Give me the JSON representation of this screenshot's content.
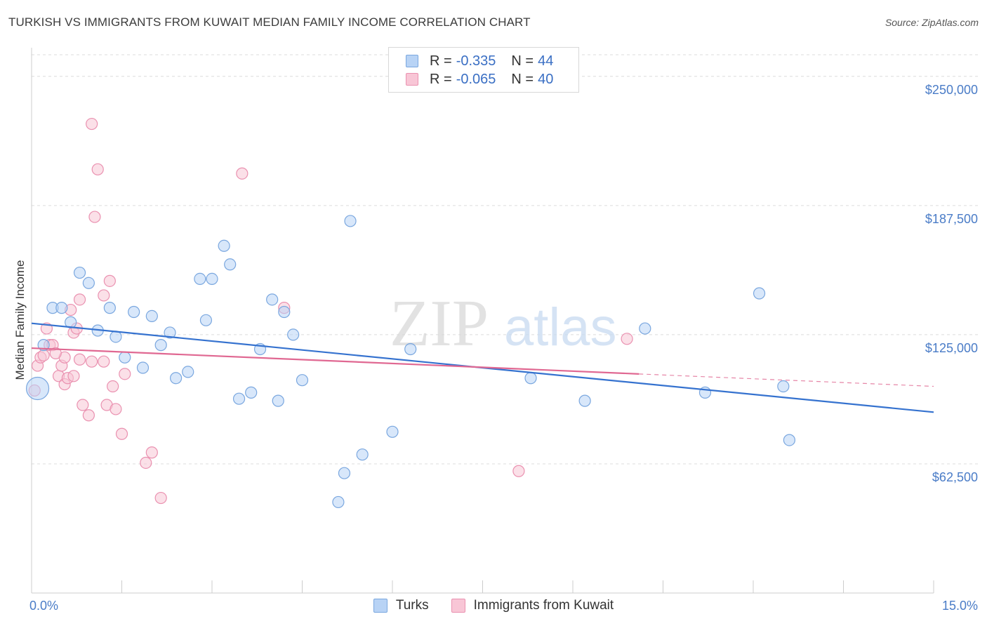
{
  "header": {
    "title": "TURKISH VS IMMIGRANTS FROM KUWAIT MEDIAN FAMILY INCOME CORRELATION CHART",
    "source": "Source: ZipAtlas.com"
  },
  "watermark": {
    "zip": "ZIP",
    "atlas": "atlas"
  },
  "legend": {
    "rows": [
      {
        "r_label": "R =",
        "r_value": "-0.335",
        "n_label": "N =",
        "n_value": "44"
      },
      {
        "r_label": "R =",
        "r_value": "-0.065",
        "n_label": "N =",
        "n_value": "40"
      }
    ]
  },
  "colors": {
    "turks_fill": "#b8d3f5",
    "turks_stroke": "#7aa7df",
    "turks_line": "#3572cf",
    "kuwait_fill": "#f8c6d6",
    "kuwait_stroke": "#ea91b0",
    "kuwait_line": "#e06892",
    "grid": "#dcdcdc",
    "tick_label": "#4a7cc7"
  },
  "chart_data": {
    "type": "scatter",
    "title": "TURKISH VS IMMIGRANTS FROM KUWAIT MEDIAN FAMILY INCOME CORRELATION CHART",
    "xlabel": "",
    "ylabel": "Median Family Income",
    "xlim": [
      0,
      15
    ],
    "ylim": [
      0,
      262500
    ],
    "x_tick_labels": [
      "0.0%",
      "15.0%"
    ],
    "y_ticks": [
      62500,
      125000,
      187500,
      250000
    ],
    "y_tick_labels": [
      "$62,500",
      "$125,000",
      "$187,500",
      "$250,000"
    ],
    "legend_position": "top-center",
    "series": [
      {
        "name": "Turks",
        "trend": {
          "x": [
            0,
            15
          ],
          "y": [
            130500,
            87500
          ]
        },
        "points": [
          [
            0.1,
            99000
          ],
          [
            0.2,
            120000
          ],
          [
            0.35,
            138000
          ],
          [
            0.5,
            138000
          ],
          [
            0.65,
            131000
          ],
          [
            0.8,
            155000
          ],
          [
            0.95,
            150000
          ],
          [
            1.1,
            127000
          ],
          [
            1.3,
            138000
          ],
          [
            1.4,
            124000
          ],
          [
            1.55,
            114000
          ],
          [
            1.7,
            136000
          ],
          [
            1.85,
            109000
          ],
          [
            2.0,
            134000
          ],
          [
            2.15,
            120000
          ],
          [
            2.3,
            126000
          ],
          [
            2.4,
            104000
          ],
          [
            2.6,
            107000
          ],
          [
            2.8,
            152000
          ],
          [
            2.9,
            132000
          ],
          [
            3.0,
            152000
          ],
          [
            3.2,
            168000
          ],
          [
            3.3,
            159000
          ],
          [
            3.45,
            94000
          ],
          [
            3.65,
            97000
          ],
          [
            3.8,
            118000
          ],
          [
            4.0,
            142000
          ],
          [
            4.1,
            93000
          ],
          [
            4.2,
            136000
          ],
          [
            4.35,
            125000
          ],
          [
            4.5,
            103000
          ],
          [
            5.1,
            44000
          ],
          [
            5.2,
            58000
          ],
          [
            5.3,
            180000
          ],
          [
            5.5,
            67000
          ],
          [
            6.0,
            78000
          ],
          [
            6.3,
            118000
          ],
          [
            8.3,
            104000
          ],
          [
            9.2,
            93000
          ],
          [
            10.2,
            128000
          ],
          [
            11.2,
            97000
          ],
          [
            12.1,
            145000
          ],
          [
            12.5,
            100000
          ],
          [
            12.6,
            74000
          ]
        ]
      },
      {
        "name": "Immigrants from Kuwait",
        "trend": {
          "x": [
            0,
            10.1
          ],
          "y": [
            118500,
            106000
          ]
        },
        "trend_ext": {
          "x": [
            10.1,
            15
          ],
          "y": [
            106000,
            100000
          ]
        },
        "points": [
          [
            0.05,
            98000
          ],
          [
            0.1,
            110000
          ],
          [
            0.15,
            114000
          ],
          [
            0.2,
            115000
          ],
          [
            0.25,
            128000
          ],
          [
            0.3,
            120000
          ],
          [
            0.35,
            120000
          ],
          [
            0.45,
            105000
          ],
          [
            0.5,
            110000
          ],
          [
            0.55,
            101000
          ],
          [
            0.55,
            114000
          ],
          [
            0.6,
            104000
          ],
          [
            0.65,
            137000
          ],
          [
            0.7,
            126000
          ],
          [
            0.7,
            105000
          ],
          [
            0.75,
            128000
          ],
          [
            0.8,
            142000
          ],
          [
            0.85,
            91000
          ],
          [
            0.95,
            86000
          ],
          [
            1.0,
            112000
          ],
          [
            1.0,
            227000
          ],
          [
            1.05,
            182000
          ],
          [
            1.1,
            205000
          ],
          [
            1.2,
            144000
          ],
          [
            1.2,
            112000
          ],
          [
            1.25,
            91000
          ],
          [
            1.3,
            151000
          ],
          [
            1.35,
            100000
          ],
          [
            1.4,
            89000
          ],
          [
            1.5,
            77000
          ],
          [
            1.55,
            106000
          ],
          [
            1.9,
            63000
          ],
          [
            2.0,
            68000
          ],
          [
            2.15,
            46000
          ],
          [
            3.5,
            203000
          ],
          [
            4.2,
            138000
          ],
          [
            8.1,
            59000
          ],
          [
            9.9,
            123000
          ],
          [
            0.8,
            113000
          ],
          [
            0.4,
            116000
          ]
        ]
      }
    ]
  },
  "bottom_legend": {
    "turks": "Turks",
    "kuwait": "Immigrants from Kuwait"
  }
}
